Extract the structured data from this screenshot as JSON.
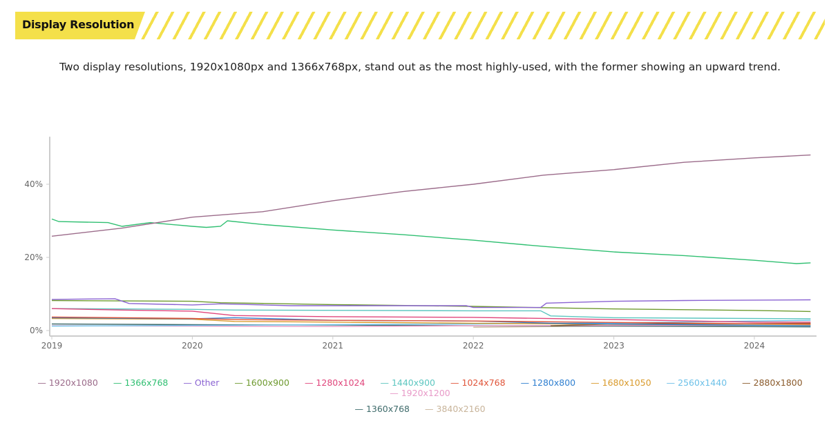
{
  "header": {
    "title": "Display Resolution"
  },
  "subtitle": "Two display resolutions, 1920x1080px and 1366x768px, stand out as the most highly-used, with the former showing an upward trend.",
  "chart_data": {
    "type": "line",
    "title": "",
    "xlabel": "",
    "ylabel": "",
    "xlim": [
      2019,
      2024.4
    ],
    "ylim": [
      0,
      53
    ],
    "x_ticks": [
      "2019",
      "2020",
      "2021",
      "2022",
      "2023",
      "2024"
    ],
    "y_ticks": [
      "0%",
      "20%",
      "40%"
    ],
    "grid": false,
    "legend": "bottom",
    "series": [
      {
        "name": "1920x1080",
        "color": "#9b6b8a",
        "points": [
          [
            2019,
            25.8
          ],
          [
            2019.5,
            28
          ],
          [
            2020,
            31
          ],
          [
            2020.5,
            32.5
          ],
          [
            2021,
            35.5
          ],
          [
            2021.5,
            38
          ],
          [
            2022,
            40
          ],
          [
            2022.5,
            42.5
          ],
          [
            2023,
            44
          ],
          [
            2023.5,
            46
          ],
          [
            2024,
            47.2
          ],
          [
            2024.4,
            48
          ]
        ]
      },
      {
        "name": "1366x768",
        "color": "#2fbf71",
        "points": [
          [
            2019,
            30.5
          ],
          [
            2019.05,
            29.8
          ],
          [
            2019.4,
            29.5
          ],
          [
            2019.5,
            28.5
          ],
          [
            2019.7,
            29.5
          ],
          [
            2020,
            28.5
          ],
          [
            2020.1,
            28.2
          ],
          [
            2020.2,
            28.5
          ],
          [
            2020.25,
            30
          ],
          [
            2020.5,
            29
          ],
          [
            2021,
            27.5
          ],
          [
            2021.5,
            26.2
          ],
          [
            2022,
            24.7
          ],
          [
            2022.5,
            23
          ],
          [
            2023,
            21.5
          ],
          [
            2023.5,
            20.5
          ],
          [
            2024,
            19.2
          ],
          [
            2024.3,
            18.3
          ],
          [
            2024.4,
            18.5
          ]
        ]
      },
      {
        "name": "Other",
        "color": "#8a63d2",
        "points": [
          [
            2019,
            8.5
          ],
          [
            2019.45,
            8.7
          ],
          [
            2019.55,
            7.4
          ],
          [
            2020,
            7
          ],
          [
            2020.2,
            7.3
          ],
          [
            2020.7,
            6.8
          ],
          [
            2021.5,
            6.8
          ],
          [
            2021.95,
            6.8
          ],
          [
            2022,
            6.3
          ],
          [
            2022.48,
            6.3
          ],
          [
            2022.52,
            7.5
          ],
          [
            2023,
            8
          ],
          [
            2023.5,
            8.2
          ],
          [
            2024.4,
            8.4
          ]
        ]
      },
      {
        "name": "1600x900",
        "color": "#6e9a2f",
        "points": [
          [
            2019,
            8.2
          ],
          [
            2020,
            8
          ],
          [
            2020.2,
            7.6
          ],
          [
            2021,
            7.1
          ],
          [
            2022,
            6.6
          ],
          [
            2023,
            5.9
          ],
          [
            2024,
            5.5
          ],
          [
            2024.4,
            5.2
          ]
        ]
      },
      {
        "name": "1280x1024",
        "color": "#e0457b",
        "points": [
          [
            2019,
            6
          ],
          [
            2019.5,
            5.6
          ],
          [
            2020,
            5.3
          ],
          [
            2020.3,
            4.1
          ],
          [
            2021,
            3.8
          ],
          [
            2022,
            3.6
          ],
          [
            2023,
            3
          ],
          [
            2024,
            2.3
          ],
          [
            2024.4,
            2.3
          ]
        ]
      },
      {
        "name": "1440x900",
        "color": "#5cc6c0",
        "points": [
          [
            2019,
            6
          ],
          [
            2020,
            5.8
          ],
          [
            2020.3,
            5.6
          ],
          [
            2022,
            5.4
          ],
          [
            2022.48,
            5.4
          ],
          [
            2022.55,
            4
          ],
          [
            2023,
            3.5
          ],
          [
            2024.4,
            3.2
          ]
        ]
      },
      {
        "name": "1024x768",
        "color": "#e0553a",
        "points": [
          [
            2019,
            3.7
          ],
          [
            2020,
            3.3
          ],
          [
            2020.3,
            3
          ],
          [
            2021,
            2.8
          ],
          [
            2022,
            2.6
          ],
          [
            2023,
            2.2
          ],
          [
            2024.4,
            1.8
          ]
        ]
      },
      {
        "name": "1280x800",
        "color": "#2f7fd0",
        "points": [
          [
            2019,
            3.5
          ],
          [
            2020,
            3.2
          ],
          [
            2020.3,
            3.5
          ],
          [
            2021,
            2.8
          ],
          [
            2022,
            2.6
          ],
          [
            2022.55,
            2
          ],
          [
            2023,
            1.8
          ],
          [
            2024.4,
            1.3
          ]
        ]
      },
      {
        "name": "1680x1050",
        "color": "#d99a2b",
        "points": [
          [
            2019,
            3.3
          ],
          [
            2020,
            3.1
          ],
          [
            2020.3,
            2.5
          ],
          [
            2021,
            2.3
          ],
          [
            2022,
            2
          ],
          [
            2023,
            1.7
          ],
          [
            2024.4,
            1.5
          ]
        ]
      },
      {
        "name": "2560x1440",
        "color": "#6cc0e8",
        "points": [
          [
            2019,
            1.2
          ],
          [
            2020,
            1.4
          ],
          [
            2021,
            1.6
          ],
          [
            2022,
            1.8
          ],
          [
            2023,
            2.1
          ],
          [
            2024.4,
            2.8
          ]
        ]
      },
      {
        "name": "2880x1800",
        "color": "#8a5a2b",
        "points": [
          [
            2022.55,
            1.3
          ],
          [
            2023,
            1.8
          ],
          [
            2024.4,
            2
          ]
        ]
      },
      {
        "name": "1920x1200",
        "color": "#e89ac8",
        "points": [
          [
            2019,
            1.3
          ],
          [
            2020,
            1.2
          ],
          [
            2021,
            1.1
          ],
          [
            2022,
            1.3
          ],
          [
            2023,
            1.4
          ],
          [
            2024.4,
            1.5
          ]
        ]
      },
      {
        "name": "1360x768",
        "color": "#3f6b6b",
        "points": [
          [
            2019,
            1.8
          ],
          [
            2020,
            1.6
          ],
          [
            2021,
            1.5
          ],
          [
            2022,
            1.3
          ],
          [
            2023,
            1.2
          ],
          [
            2024.4,
            1
          ]
        ]
      },
      {
        "name": "3840x2160",
        "color": "#c8b49a",
        "points": [
          [
            2022,
            0.9
          ],
          [
            2023,
            1.2
          ],
          [
            2024.4,
            1.5
          ]
        ]
      }
    ]
  }
}
